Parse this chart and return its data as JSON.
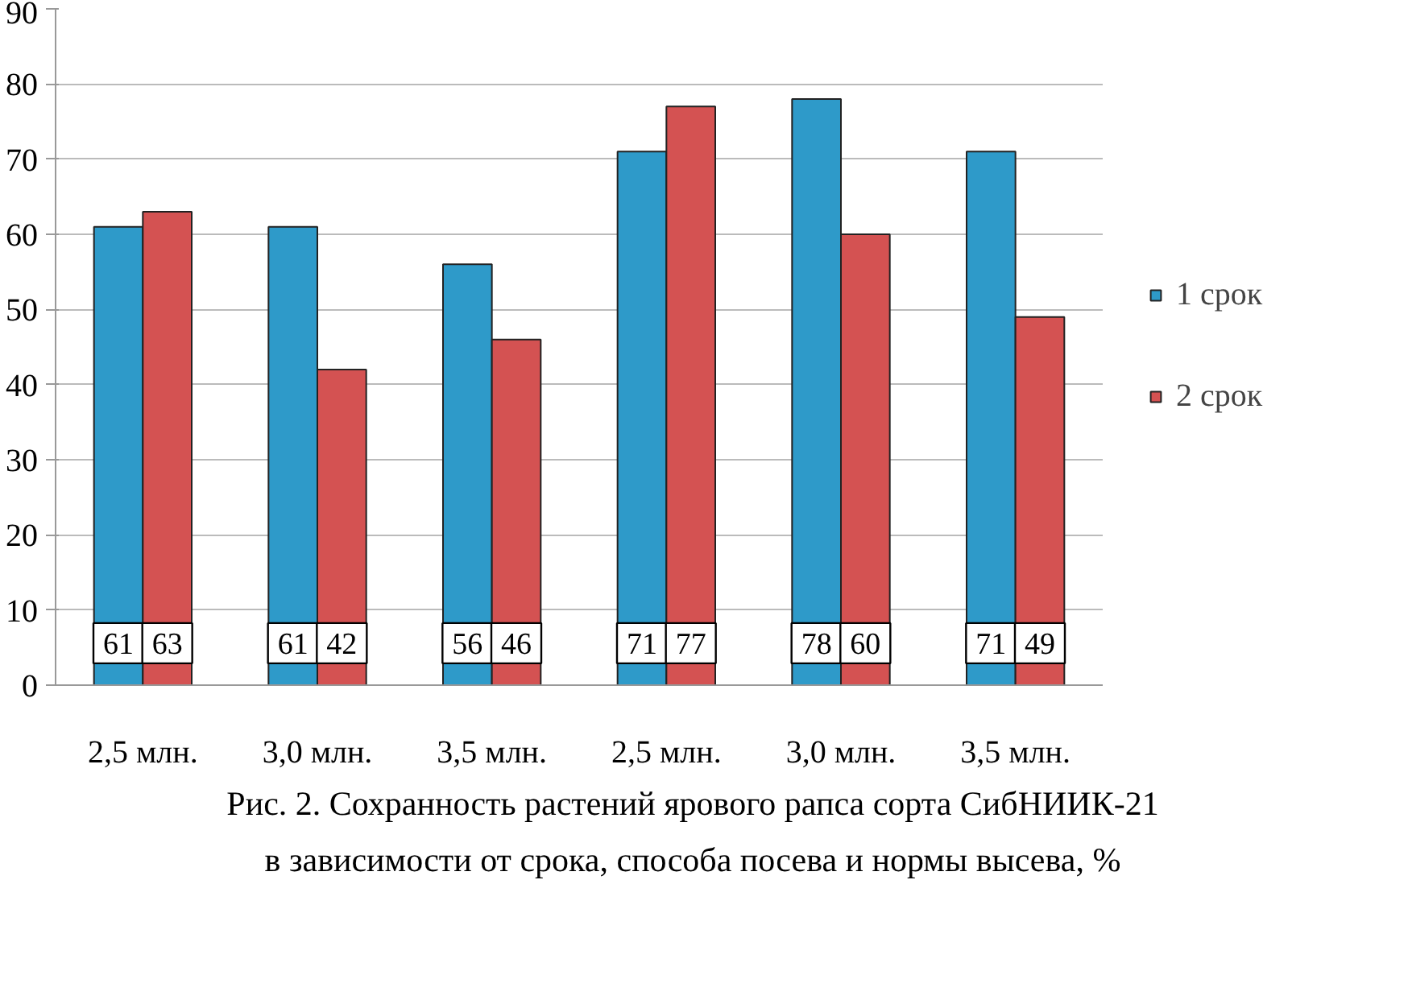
{
  "chart_data": {
    "type": "bar",
    "categories": [
      "2,5 млн.",
      "3,0 млн.",
      "3,5 млн.",
      "2,5 млн.",
      "3,0 млн.",
      "3,5 млн."
    ],
    "series": [
      {
        "name": "1 срок",
        "color": "#2e9ac9",
        "values": [
          61,
          61,
          56,
          71,
          78,
          71
        ]
      },
      {
        "name": "2 срок",
        "color": "#d45252",
        "values": [
          63,
          42,
          46,
          77,
          60,
          49
        ]
      }
    ],
    "ylim": [
      0,
      90
    ],
    "yticks": [
      0,
      10,
      20,
      30,
      40,
      50,
      60,
      70,
      80,
      90
    ],
    "grid": "y",
    "legend": "right",
    "data_labels": true,
    "annotations": [
      "Рис. 2.  Сохранность растений ярового рапса сорта СибНИИК-21",
      "в зависимости  от срока, способа посева и нормы высева, %"
    ]
  }
}
